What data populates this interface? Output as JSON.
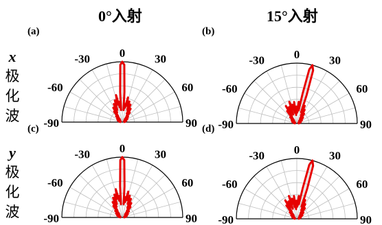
{
  "column_titles": [
    "0°入射",
    "15°入射"
  ],
  "row_labels": [
    {
      "variable": "x",
      "text": [
        "极",
        "化",
        "波"
      ]
    },
    {
      "variable": "y",
      "text": [
        "极",
        "化",
        "波"
      ]
    }
  ],
  "colors": {
    "pattern": "#e60000",
    "grid": "#bdbdbd",
    "frame": "#000000"
  },
  "chart_data": [
    {
      "type": "polar-half",
      "panel_label": "(a)",
      "angle_labels": [
        "-90",
        "-60",
        "-30",
        "0",
        "30",
        "60",
        "90"
      ],
      "angle_range": [
        -90,
        90
      ],
      "r_range": [
        0,
        1
      ],
      "grid": true,
      "series": [
        {
          "theta": [
            -90,
            -82,
            -75,
            -70,
            -65,
            -58,
            -52,
            -47,
            -42,
            -38,
            -35,
            -32,
            -28,
            -25,
            -22,
            -19,
            -16,
            -13,
            -10,
            -8,
            -6,
            -4,
            -2,
            0,
            2,
            4,
            6,
            8,
            10,
            13,
            16,
            19,
            22,
            25,
            28,
            32,
            35,
            38,
            42,
            47,
            52,
            58,
            65,
            70,
            75,
            82,
            90
          ],
          "r": [
            0.02,
            0.05,
            0.03,
            0.08,
            0.03,
            0.1,
            0.05,
            0.14,
            0.06,
            0.22,
            0.12,
            0.28,
            0.18,
            0.33,
            0.22,
            0.38,
            0.3,
            0.46,
            0.25,
            0.34,
            0.2,
            0.5,
            0.95,
            1.0,
            0.95,
            0.5,
            0.2,
            0.3,
            0.24,
            0.42,
            0.28,
            0.36,
            0.22,
            0.32,
            0.16,
            0.26,
            0.12,
            0.2,
            0.06,
            0.13,
            0.05,
            0.1,
            0.03,
            0.07,
            0.03,
            0.05,
            0.02
          ]
        }
      ]
    },
    {
      "type": "polar-half",
      "panel_label": "(b)",
      "angle_labels": [
        "-90",
        "-60",
        "-30",
        "0",
        "30",
        "60",
        "90"
      ],
      "angle_range": [
        -90,
        90
      ],
      "r_range": [
        0,
        1
      ],
      "grid": true,
      "series": [
        {
          "theta": [
            -90,
            -82,
            -75,
            -70,
            -65,
            -58,
            -52,
            -47,
            -42,
            -38,
            -35,
            -32,
            -28,
            -25,
            -22,
            -19,
            -16,
            -13,
            -10,
            -7,
            -4,
            -1,
            2,
            5,
            8,
            11,
            13,
            15,
            17,
            19,
            21,
            24,
            27,
            30,
            33,
            37,
            42,
            47,
            52,
            58,
            65,
            70,
            75,
            82,
            90
          ],
          "r": [
            0.02,
            0.05,
            0.03,
            0.08,
            0.03,
            0.1,
            0.05,
            0.15,
            0.07,
            0.26,
            0.14,
            0.34,
            0.2,
            0.3,
            0.16,
            0.38,
            0.24,
            0.32,
            0.18,
            0.36,
            0.14,
            0.28,
            0.18,
            0.36,
            0.22,
            0.5,
            0.92,
            1.0,
            0.92,
            0.5,
            0.2,
            0.32,
            0.15,
            0.26,
            0.1,
            0.2,
            0.06,
            0.14,
            0.05,
            0.1,
            0.03,
            0.07,
            0.03,
            0.05,
            0.02
          ]
        }
      ]
    },
    {
      "type": "polar-half",
      "panel_label": "(c)",
      "angle_labels": [
        "-90",
        "-60",
        "-30",
        "0",
        "30",
        "60",
        "90"
      ],
      "angle_range": [
        -90,
        90
      ],
      "r_range": [
        0,
        1
      ],
      "grid": true,
      "series": [
        {
          "theta": [
            -90,
            -82,
            -75,
            -70,
            -65,
            -58,
            -52,
            -47,
            -42,
            -38,
            -35,
            -32,
            -28,
            -25,
            -22,
            -19,
            -16,
            -13,
            -10,
            -8,
            -6,
            -4,
            -2,
            0,
            2,
            4,
            6,
            8,
            10,
            13,
            16,
            19,
            22,
            25,
            28,
            32,
            35,
            38,
            42,
            47,
            52,
            58,
            65,
            70,
            75,
            82,
            90
          ],
          "r": [
            0.02,
            0.06,
            0.03,
            0.09,
            0.04,
            0.12,
            0.06,
            0.16,
            0.08,
            0.24,
            0.14,
            0.3,
            0.2,
            0.36,
            0.24,
            0.4,
            0.32,
            0.48,
            0.28,
            0.36,
            0.22,
            0.52,
            0.95,
            1.0,
            0.95,
            0.52,
            0.22,
            0.34,
            0.26,
            0.44,
            0.3,
            0.38,
            0.24,
            0.34,
            0.18,
            0.28,
            0.13,
            0.22,
            0.07,
            0.15,
            0.06,
            0.11,
            0.04,
            0.08,
            0.03,
            0.06,
            0.02
          ]
        }
      ]
    },
    {
      "type": "polar-half",
      "panel_label": "(d)",
      "angle_labels": [
        "-90",
        "-60",
        "-30",
        "0",
        "30",
        "60",
        "90"
      ],
      "angle_range": [
        -90,
        90
      ],
      "r_range": [
        0,
        1
      ],
      "grid": true,
      "series": [
        {
          "theta": [
            -90,
            -82,
            -75,
            -70,
            -65,
            -58,
            -52,
            -47,
            -42,
            -38,
            -35,
            -32,
            -28,
            -25,
            -22,
            -19,
            -16,
            -13,
            -10,
            -7,
            -4,
            -1,
            2,
            5,
            8,
            11,
            13,
            15,
            17,
            19,
            21,
            24,
            27,
            30,
            33,
            37,
            42,
            47,
            52,
            58,
            65,
            70,
            75,
            82,
            90
          ],
          "r": [
            0.02,
            0.05,
            0.03,
            0.08,
            0.04,
            0.11,
            0.06,
            0.16,
            0.08,
            0.28,
            0.15,
            0.36,
            0.22,
            0.32,
            0.18,
            0.4,
            0.26,
            0.34,
            0.2,
            0.38,
            0.16,
            0.3,
            0.2,
            0.38,
            0.24,
            0.52,
            0.92,
            1.0,
            0.92,
            0.52,
            0.22,
            0.34,
            0.16,
            0.28,
            0.11,
            0.22,
            0.07,
            0.15,
            0.05,
            0.11,
            0.04,
            0.07,
            0.03,
            0.05,
            0.02
          ]
        }
      ]
    }
  ]
}
